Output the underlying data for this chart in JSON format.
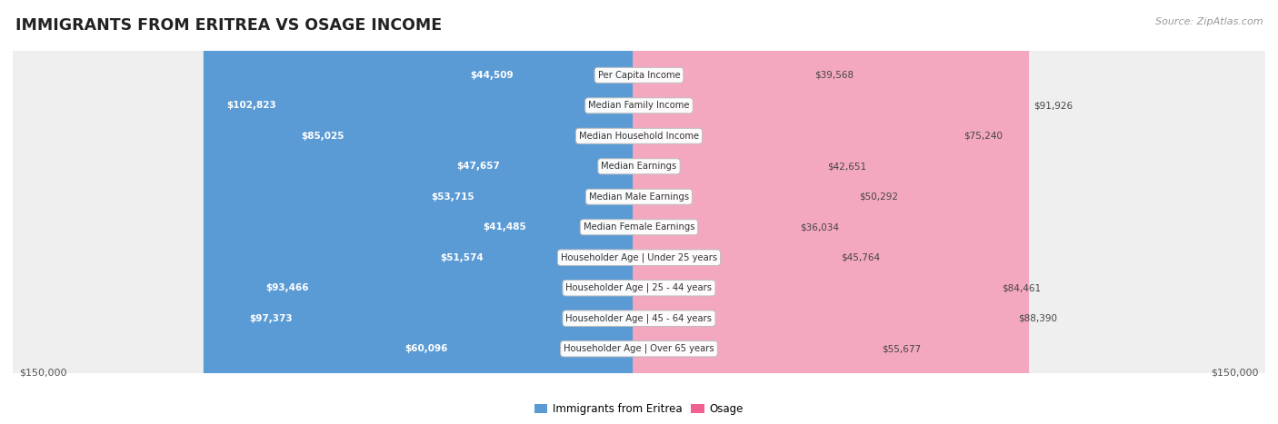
{
  "title": "IMMIGRANTS FROM ERITREA VS OSAGE INCOME",
  "source": "Source: ZipAtlas.com",
  "categories": [
    "Per Capita Income",
    "Median Family Income",
    "Median Household Income",
    "Median Earnings",
    "Median Male Earnings",
    "Median Female Earnings",
    "Householder Age | Under 25 years",
    "Householder Age | 25 - 44 years",
    "Householder Age | 45 - 64 years",
    "Householder Age | Over 65 years"
  ],
  "eritrea_values": [
    44509,
    102823,
    85025,
    47657,
    53715,
    41485,
    51574,
    93466,
    97373,
    60096
  ],
  "osage_values": [
    39568,
    91926,
    75240,
    42651,
    50292,
    36034,
    45764,
    84461,
    88390,
    55677
  ],
  "eritrea_color_light": "#a8c8e8",
  "eritrea_color_strong": "#5b9bd5",
  "osage_color_light": "#f4a8c0",
  "osage_color_strong": "#f06090",
  "max_value": 150000,
  "legend_eritrea": "Immigrants from Eritrea",
  "legend_osage": "Osage",
  "row_bg_color": "#efefef",
  "row_bg_edge": "#d8d8d8"
}
